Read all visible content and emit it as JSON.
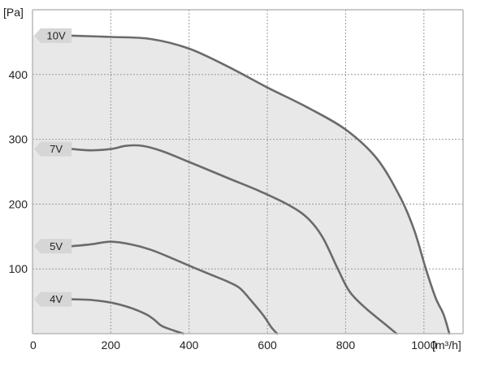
{
  "chart_data": {
    "type": "line",
    "title": "",
    "xlabel": "[m³/h]",
    "ylabel": "[Pa]",
    "xlim": [
      0,
      1100
    ],
    "ylim": [
      0,
      500
    ],
    "x_ticks": [
      "0",
      "200",
      "400",
      "600",
      "800",
      "1000"
    ],
    "y_ticks": [
      "100",
      "200",
      "300",
      "400"
    ],
    "grid": true,
    "series": [
      {
        "name": "10V",
        "points": [
          [
            100,
            460
          ],
          [
            200,
            458
          ],
          [
            300,
            455
          ],
          [
            400,
            440
          ],
          [
            500,
            412
          ],
          [
            600,
            380
          ],
          [
            700,
            350
          ],
          [
            800,
            315
          ],
          [
            880,
            270
          ],
          [
            940,
            210
          ],
          [
            975,
            160
          ],
          [
            1005,
            100
          ],
          [
            1030,
            55
          ],
          [
            1050,
            30
          ],
          [
            1065,
            0
          ]
        ]
      },
      {
        "name": "7V",
        "points": [
          [
            100,
            285
          ],
          [
            150,
            283
          ],
          [
            200,
            285
          ],
          [
            240,
            290
          ],
          [
            280,
            290
          ],
          [
            330,
            282
          ],
          [
            400,
            265
          ],
          [
            500,
            240
          ],
          [
            580,
            220
          ],
          [
            650,
            200
          ],
          [
            700,
            180
          ],
          [
            740,
            150
          ],
          [
            780,
            100
          ],
          [
            810,
            65
          ],
          [
            850,
            40
          ],
          [
            900,
            15
          ],
          [
            930,
            0
          ]
        ]
      },
      {
        "name": "5V",
        "points": [
          [
            100,
            135
          ],
          [
            150,
            138
          ],
          [
            200,
            142
          ],
          [
            250,
            138
          ],
          [
            300,
            130
          ],
          [
            350,
            118
          ],
          [
            400,
            105
          ],
          [
            460,
            90
          ],
          [
            500,
            80
          ],
          [
            530,
            70
          ],
          [
            560,
            50
          ],
          [
            590,
            28
          ],
          [
            610,
            10
          ],
          [
            625,
            0
          ]
        ]
      },
      {
        "name": "4V",
        "points": [
          [
            100,
            53
          ],
          [
            150,
            52
          ],
          [
            200,
            48
          ],
          [
            250,
            40
          ],
          [
            290,
            30
          ],
          [
            310,
            22
          ],
          [
            330,
            12
          ],
          [
            360,
            5
          ],
          [
            385,
            0
          ]
        ]
      }
    ]
  },
  "colors": {
    "curve": "#6b6b6b",
    "area_fill": "#e8e8e8",
    "grid": "#9a9a9a",
    "axis": "#b8b8b8",
    "tag_fill": "#d6d6d6"
  }
}
